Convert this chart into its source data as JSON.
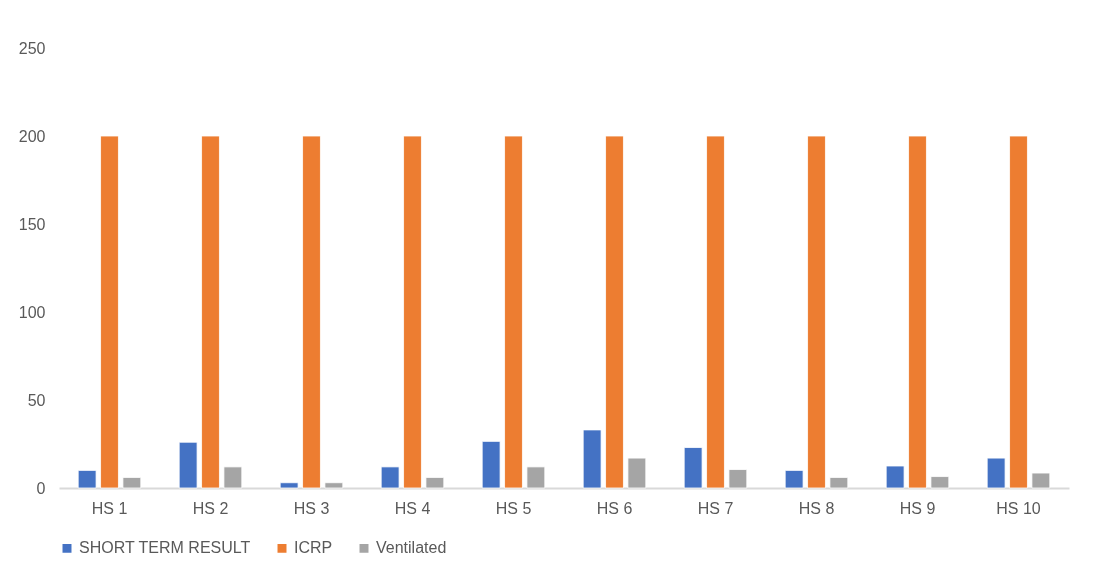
{
  "chart_data": {
    "type": "bar",
    "categories": [
      "HS 1",
      "HS 2",
      "HS 3",
      "HS 4",
      "HS 5",
      "HS 6",
      "HS 7",
      "HS 8",
      "HS 9",
      "HS 10"
    ],
    "series": [
      {
        "name": "SHORT TERM RESULT",
        "color": "#4472c4",
        "values": [
          10,
          26,
          3,
          12,
          26.5,
          33,
          23,
          10,
          12.5,
          17
        ]
      },
      {
        "name": "ICRP",
        "color": "#ed7d31",
        "values": [
          200,
          200,
          200,
          200,
          200,
          200,
          200,
          200,
          200,
          200
        ]
      },
      {
        "name": "Ventilated",
        "color": "#a5a5a5",
        "values": [
          6,
          12,
          3,
          6,
          12,
          17,
          10.5,
          6,
          6.5,
          8.5
        ]
      }
    ],
    "ylim": [
      0,
      250
    ],
    "yticks": [
      0,
      50,
      100,
      150,
      200,
      250
    ],
    "grid": false,
    "legend": "bottom"
  }
}
